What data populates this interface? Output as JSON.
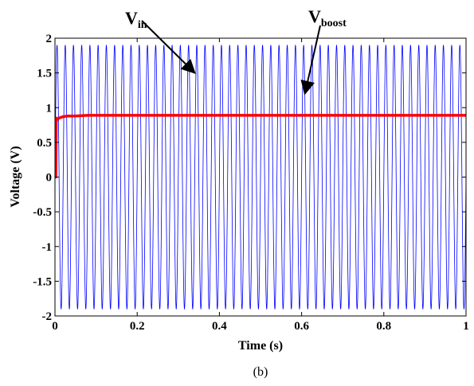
{
  "chart_data": {
    "type": "line",
    "title": "",
    "caption": "(b)",
    "xlabel": "Time (s)",
    "ylabel": "Voltage (V)",
    "xlim": [
      0,
      1
    ],
    "ylim": [
      -2,
      2
    ],
    "x_ticks": [
      "0",
      "0.2",
      "0.4",
      "0.6",
      "0.8",
      "1"
    ],
    "y_ticks": [
      "2",
      "1.5",
      "1",
      "0.5",
      "0",
      "-0.5",
      "-1",
      "-1.5",
      "-2"
    ],
    "grid": false,
    "series": [
      {
        "name": "V_in",
        "color": "#0000ff",
        "kind": "sinusoid",
        "amplitude": 1.9,
        "frequency_hz": 50
      },
      {
        "name": "V_boost",
        "color": "#ff0000",
        "x": [
          0,
          0.002,
          0.003,
          0.004,
          0.006,
          0.01,
          0.015,
          0.02,
          0.03,
          0.05,
          0.08,
          0.1,
          0.2,
          0.4,
          0.6,
          0.8,
          1.0
        ],
        "y": [
          0,
          0.0,
          0.78,
          0.85,
          0.83,
          0.85,
          0.86,
          0.87,
          0.88,
          0.88,
          0.89,
          0.89,
          0.89,
          0.89,
          0.89,
          0.89,
          0.89
        ]
      }
    ],
    "annotations": [
      {
        "main": "V",
        "sub": "in",
        "target_x": 0.34,
        "target_y": 1.5
      },
      {
        "main": "V",
        "sub": "boost",
        "target_x": 0.608,
        "target_y": 1.2
      }
    ]
  }
}
